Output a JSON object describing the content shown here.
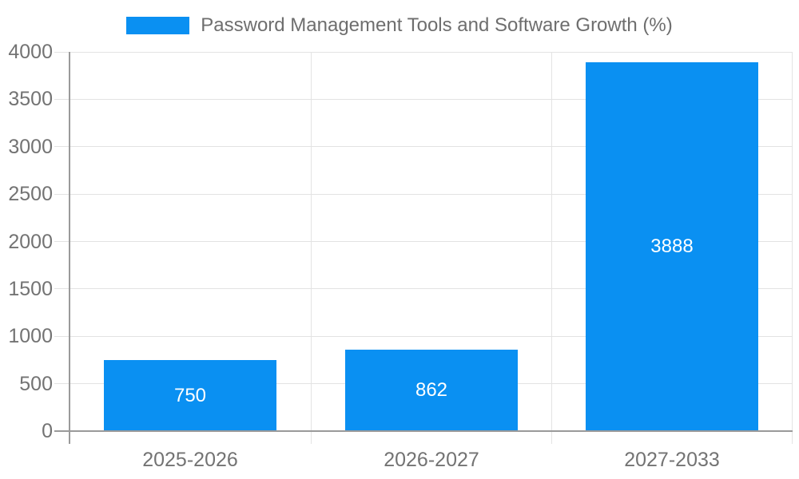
{
  "legend": {
    "swatch_color": "#0a90f2",
    "label": "Password Management Tools and Software Growth (%)"
  },
  "chart_data": {
    "type": "bar",
    "title": "Password Management Tools and Software Growth (%)",
    "categories": [
      "2025-2026",
      "2026-2027",
      "2027-2033"
    ],
    "values": [
      750,
      862,
      3888
    ],
    "bar_labels": [
      "750",
      "862",
      "3888"
    ],
    "xlabel": "",
    "ylabel": "",
    "ylim": [
      0,
      4000
    ],
    "ytick_step": 500,
    "ytick_labels": [
      "0",
      "500",
      "1000",
      "1500",
      "2000",
      "2500",
      "3000",
      "3500",
      "4000"
    ],
    "grid": true,
    "legend_position": "top-center",
    "colors": {
      "bar": "#0a90f2",
      "bar_value_text": "#ffffff",
      "axis_line": "#9a9a9a",
      "grid_line": "#e3e3e3",
      "tick_text": "#737373",
      "title_text": "#6e6e6e",
      "background": "#ffffff"
    }
  }
}
